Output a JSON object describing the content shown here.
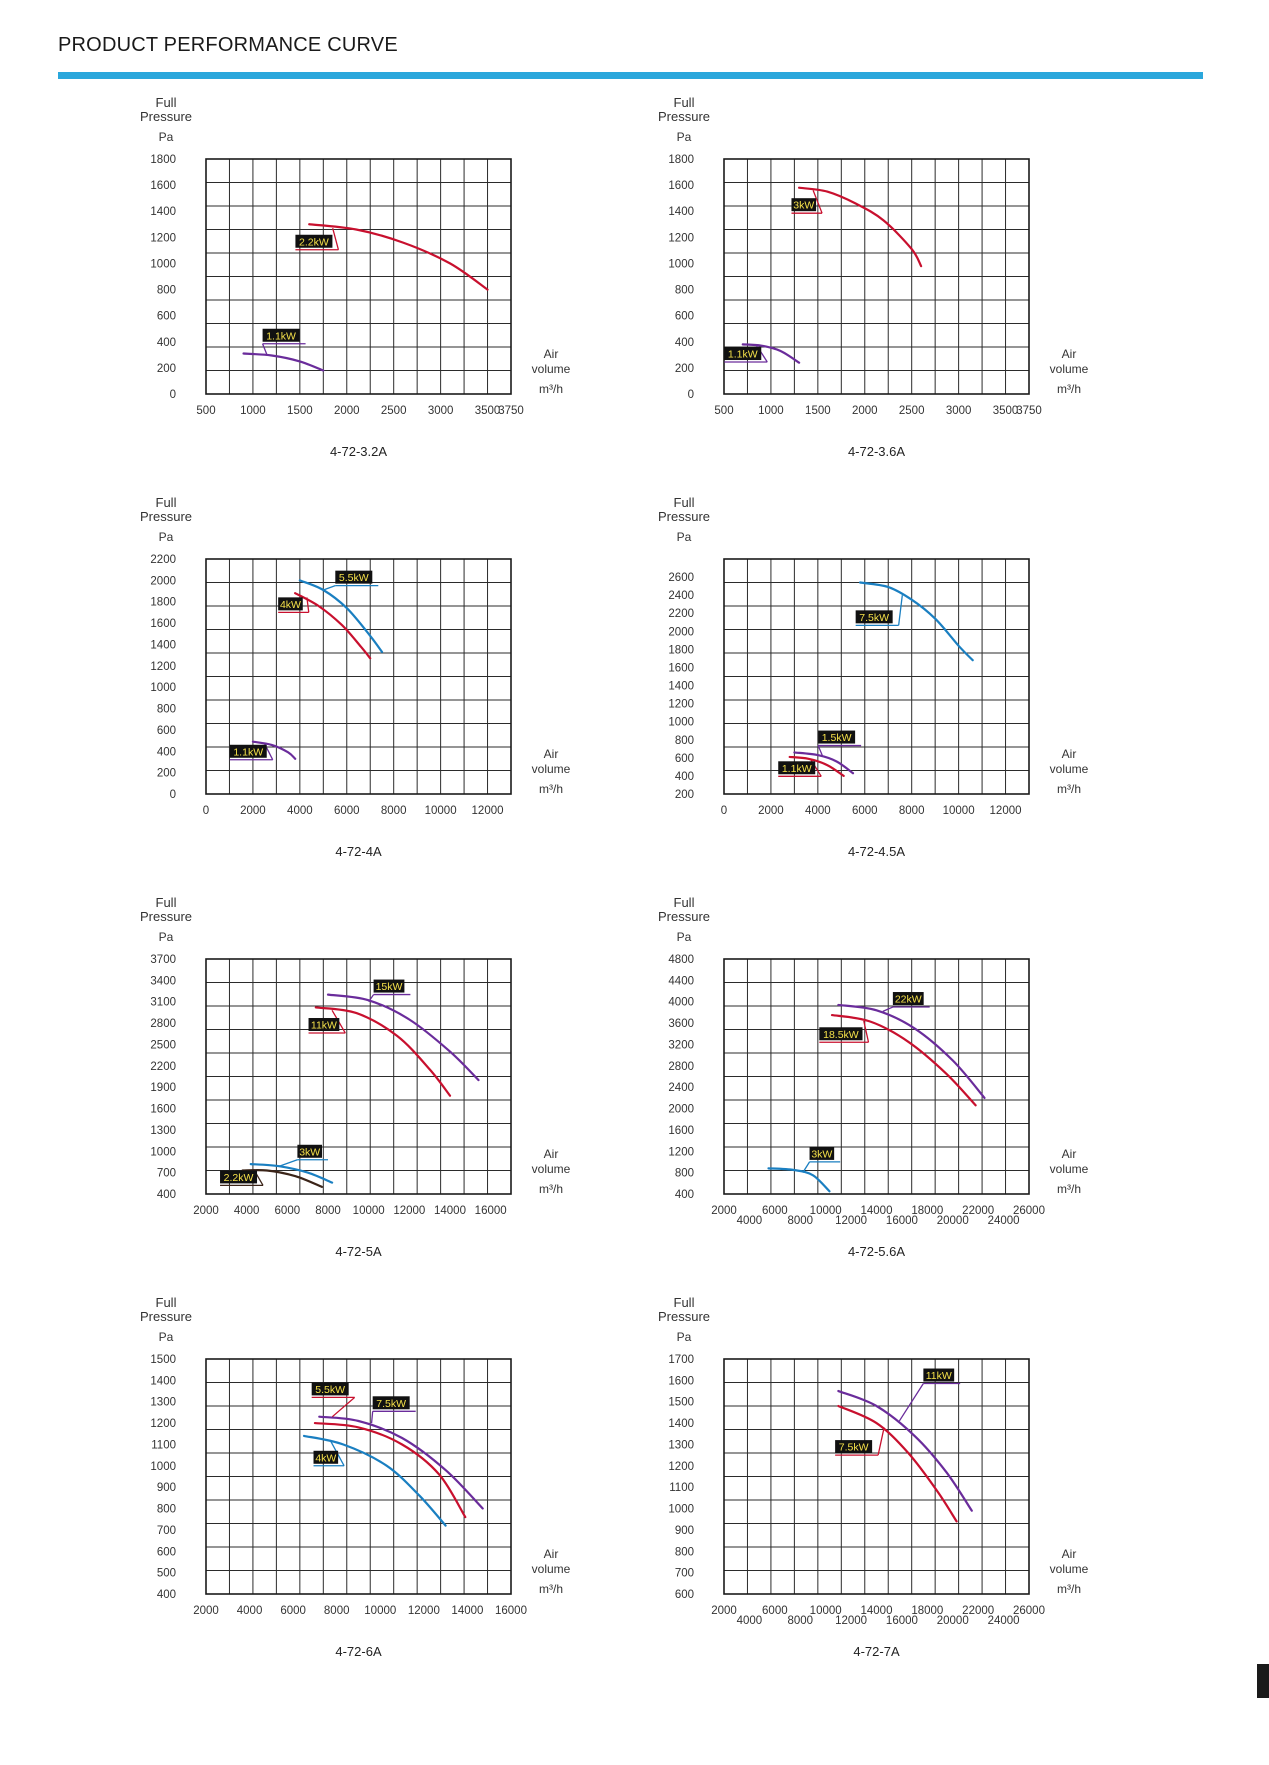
{
  "page": {
    "title": "PRODUCT PERFORMANCE CURVE"
  },
  "colors": {
    "accent": "#2aa7dc",
    "purple": "#6a2c9b",
    "red": "#c8102e",
    "blue": "#1a7fc1",
    "brown": "#3b2418",
    "badge_bg": "#111111",
    "badge_text": "#f5e14a"
  },
  "chart_data": [
    {
      "type": "line",
      "title": "4-72-3.2A",
      "ylabel": [
        "Full",
        "Pressure",
        "Pa"
      ],
      "xlabel": [
        "Air",
        "volume",
        "m³/h"
      ],
      "xlim": [
        500,
        3750
      ],
      "ylim": [
        0,
        1800
      ],
      "x_ticks": [
        500,
        1000,
        1500,
        2000,
        2500,
        3000,
        3500,
        3750
      ],
      "x_tick_labels": [
        "500",
        "1000",
        "1500",
        "2000",
        "2500",
        "3000",
        "3500",
        "3750"
      ],
      "y_ticks": [
        0,
        200,
        400,
        600,
        800,
        1000,
        1200,
        1400,
        1600,
        1800
      ],
      "series": [
        {
          "name": "2.2kW",
          "color": "#c8102e",
          "x": [
            1600,
            2100,
            2600,
            3100,
            3500
          ],
          "y": [
            1300,
            1260,
            1160,
            1000,
            800
          ],
          "label_at": [
            1850,
            1270
          ],
          "label_pos": [
            1650,
            1170
          ]
        },
        {
          "name": "1.1kW",
          "color": "#6a2c9b",
          "x": [
            900,
            1200,
            1500,
            1750
          ],
          "y": [
            310,
            295,
            250,
            180
          ],
          "label_at": [
            1150,
            300
          ],
          "label_pos": [
            1300,
            450
          ]
        }
      ]
    },
    {
      "type": "line",
      "title": "4-72-3.6A",
      "ylabel": [
        "Full",
        "Pressure",
        "Pa"
      ],
      "xlabel": [
        "Air",
        "volume",
        "m³/h"
      ],
      "xlim": [
        500,
        3750
      ],
      "ylim": [
        0,
        1800
      ],
      "x_ticks": [
        500,
        1000,
        1500,
        2000,
        2500,
        3000,
        3500,
        3750
      ],
      "x_tick_labels": [
        "500",
        "1000",
        "1500",
        "2000",
        "2500",
        "3000",
        "3500",
        "3750"
      ],
      "y_ticks": [
        0,
        200,
        400,
        600,
        800,
        1000,
        1200,
        1400,
        1600,
        1800
      ],
      "series": [
        {
          "name": "3kW",
          "color": "#c8102e",
          "x": [
            1300,
            1600,
            1900,
            2200,
            2500,
            2600
          ],
          "y": [
            1580,
            1550,
            1460,
            1330,
            1110,
            980
          ],
          "label_at": [
            1450,
            1560
          ],
          "label_pos": [
            1350,
            1450
          ]
        },
        {
          "name": "1.1kW",
          "color": "#6a2c9b",
          "x": [
            700,
            900,
            1100,
            1300
          ],
          "y": [
            380,
            370,
            330,
            240
          ],
          "label_at": [
            850,
            370
          ],
          "label_pos": [
            700,
            310
          ]
        }
      ]
    },
    {
      "type": "line",
      "title": "4-72-4A",
      "ylabel": [
        "Full",
        "Pressure",
        "Pa"
      ],
      "xlabel": [
        "Air",
        "volume",
        "m³/h"
      ],
      "xlim": [
        0,
        13000
      ],
      "ylim": [
        0,
        2200
      ],
      "x_ticks": [
        0,
        2000,
        4000,
        6000,
        8000,
        10000,
        12000
      ],
      "x_tick_labels": [
        "0",
        "2000",
        "4000",
        "6000",
        "8000",
        "10000",
        "12000"
      ],
      "y_ticks": [
        0,
        200,
        400,
        600,
        800,
        1000,
        1200,
        1400,
        1600,
        1800,
        2000,
        2200
      ],
      "series": [
        {
          "name": "5.5kW",
          "color": "#1a7fc1",
          "x": [
            4000,
            5000,
            6000,
            7000,
            7500
          ],
          "y": [
            2000,
            1910,
            1740,
            1480,
            1330
          ],
          "label_at": [
            5000,
            1910
          ],
          "label_pos": [
            6300,
            2030
          ]
        },
        {
          "name": "4kW",
          "color": "#c8102e",
          "x": [
            3800,
            4800,
            5800,
            6600,
            7000
          ],
          "y": [
            1880,
            1760,
            1580,
            1380,
            1270
          ],
          "label_at": [
            4300,
            1840
          ],
          "label_pos": [
            3600,
            1780
          ]
        },
        {
          "name": "1.1kW",
          "color": "#6a2c9b",
          "x": [
            2000,
            2800,
            3500,
            3800
          ],
          "y": [
            490,
            460,
            390,
            330
          ],
          "label_at": [
            2500,
            470
          ],
          "label_pos": [
            1800,
            400
          ]
        }
      ]
    },
    {
      "type": "line",
      "title": "4-72-4.5A",
      "ylabel": [
        "Full",
        "Pressure",
        "Pa"
      ],
      "xlabel": [
        "Air",
        "volume",
        "m³/h"
      ],
      "xlim": [
        0,
        13000
      ],
      "ylim": [
        200,
        2800
      ],
      "x_ticks": [
        0,
        2000,
        4000,
        6000,
        8000,
        10000,
        12000
      ],
      "x_tick_labels": [
        "0",
        "2000",
        "4000",
        "6000",
        "8000",
        "10000",
        "12000"
      ],
      "y_ticks": [
        200,
        400,
        600,
        800,
        1000,
        1200,
        1400,
        1600,
        1800,
        2000,
        2200,
        2400,
        2600
      ],
      "series": [
        {
          "name": "7.5kW",
          "color": "#1a7fc1",
          "x": [
            5800,
            7000,
            8000,
            9000,
            10000,
            10600
          ],
          "y": [
            2540,
            2490,
            2350,
            2140,
            1840,
            1680
          ],
          "label_at": [
            7600,
            2400
          ],
          "label_pos": [
            6400,
            2160
          ]
        },
        {
          "name": "1.5kW",
          "color": "#6a2c9b",
          "x": [
            3000,
            4000,
            4800,
            5500
          ],
          "y": [
            660,
            630,
            560,
            430
          ],
          "label_at": [
            4200,
            620
          ],
          "label_pos": [
            4800,
            830
          ]
        },
        {
          "name": "1.1kW",
          "color": "#c8102e",
          "x": [
            2800,
            3600,
            4400,
            5100
          ],
          "y": [
            610,
            590,
            520,
            400
          ],
          "label_at": [
            3700,
            580
          ],
          "label_pos": [
            3100,
            490
          ]
        }
      ]
    },
    {
      "type": "line",
      "title": "4-72-5A",
      "ylabel": [
        "Full",
        "Pressure",
        "Pa"
      ],
      "xlabel": [
        "Air",
        "volume",
        "m³/h"
      ],
      "xlim": [
        2000,
        17000
      ],
      "ylim": [
        400,
        3700
      ],
      "x_ticks": [
        2000,
        4000,
        6000,
        8000,
        10000,
        12000,
        14000,
        16000
      ],
      "x_tick_labels": [
        "2000",
        "4000",
        "6000",
        "8000",
        "10000",
        "12000",
        "14000",
        "16000"
      ],
      "y_ticks": [
        400,
        700,
        1000,
        1300,
        1600,
        1900,
        2200,
        2500,
        2800,
        3100,
        3400,
        3700
      ],
      "series": [
        {
          "name": "15kW",
          "color": "#6a2c9b",
          "x": [
            8000,
            10000,
            12000,
            14000,
            15400
          ],
          "y": [
            3200,
            3120,
            2850,
            2400,
            2000
          ],
          "label_at": [
            10000,
            3100
          ],
          "label_pos": [
            11000,
            3320
          ]
        },
        {
          "name": "11kW",
          "color": "#c8102e",
          "x": [
            7400,
            9400,
            11400,
            13000,
            14000
          ],
          "y": [
            3020,
            2940,
            2620,
            2150,
            1780
          ],
          "label_at": [
            8200,
            2980
          ],
          "label_pos": [
            7800,
            2780
          ]
        },
        {
          "name": "3kW",
          "color": "#1a7fc1",
          "x": [
            4200,
            5600,
            7000,
            8200
          ],
          "y": [
            820,
            790,
            700,
            560
          ],
          "label_at": [
            5600,
            790
          ],
          "label_pos": [
            7100,
            1000
          ]
        },
        {
          "name": "2.2kW",
          "color": "#3b2418",
          "x": [
            3800,
            5000,
            6400,
            7700
          ],
          "y": [
            730,
            730,
            650,
            500
          ],
          "label_at": [
            4400,
            720
          ],
          "label_pos": [
            3600,
            640
          ]
        }
      ]
    },
    {
      "type": "line",
      "title": "4-72-5.6A",
      "ylabel": [
        "Full",
        "Pressure",
        "Pa"
      ],
      "xlabel": [
        "Air",
        "volume",
        "m³/h"
      ],
      "xlim": [
        2000,
        26000
      ],
      "ylim": [
        400,
        4800
      ],
      "x_ticks": [
        2000,
        4000,
        6000,
        8000,
        10000,
        12000,
        14000,
        16000,
        18000,
        20000,
        22000,
        24000,
        26000
      ],
      "x_tick_labels": [
        "2000",
        "4000",
        "6000",
        "8000",
        "10000",
        "12000",
        "14000",
        "16000",
        "18000",
        "20000",
        "22000",
        "24000",
        "26000"
      ],
      "y_ticks": [
        400,
        800,
        1200,
        1600,
        2000,
        2400,
        2800,
        3200,
        3600,
        4000,
        4400,
        4800
      ],
      "series": [
        {
          "name": "22kW",
          "color": "#6a2c9b",
          "x": [
            11000,
            14000,
            17000,
            20000,
            22500
          ],
          "y": [
            3940,
            3840,
            3500,
            2900,
            2200
          ],
          "label_at": [
            14500,
            3820
          ],
          "label_pos": [
            16500,
            4060
          ]
        },
        {
          "name": "18.5kW",
          "color": "#c8102e",
          "x": [
            10500,
            13500,
            16500,
            19500,
            21800
          ],
          "y": [
            3750,
            3630,
            3250,
            2650,
            2060
          ],
          "label_at": [
            13000,
            3640
          ],
          "label_pos": [
            11200,
            3400
          ]
        },
        {
          "name": "3kW",
          "color": "#1a7fc1",
          "x": [
            5500,
            7500,
            9000,
            10300
          ],
          "y": [
            880,
            850,
            750,
            450
          ],
          "label_at": [
            8200,
            800
          ],
          "label_pos": [
            9700,
            1160
          ]
        }
      ]
    },
    {
      "type": "line",
      "title": "4-72-6A",
      "ylabel": [
        "Full",
        "Pressure",
        "Pa"
      ],
      "xlabel": [
        "Air",
        "volume",
        "m³/h"
      ],
      "xlim": [
        2000,
        16000
      ],
      "ylim": [
        400,
        1500
      ],
      "x_ticks": [
        2000,
        4000,
        6000,
        8000,
        10000,
        12000,
        14000,
        16000
      ],
      "x_tick_labels": [
        "2000",
        "4000",
        "6000",
        "8000",
        "10000",
        "12000",
        "14000",
        "16000"
      ],
      "y_ticks": [
        400,
        500,
        600,
        700,
        800,
        900,
        1000,
        1100,
        1200,
        1300,
        1400,
        1500
      ],
      "series": [
        {
          "name": "7.5kW",
          "color": "#6a2c9b",
          "x": [
            7200,
            9000,
            11000,
            13000,
            14700
          ],
          "y": [
            1230,
            1210,
            1130,
            980,
            800
          ],
          "label_at": [
            9600,
            1200
          ],
          "label_pos": [
            10500,
            1295
          ]
        },
        {
          "name": "5.5kW",
          "color": "#c8102e",
          "x": [
            7000,
            9000,
            11000,
            12700,
            13900
          ],
          "y": [
            1200,
            1180,
            1100,
            960,
            760
          ],
          "label_at": [
            7800,
            1230
          ],
          "label_pos": [
            7700,
            1360
          ]
        },
        {
          "name": "4kW",
          "color": "#1a7fc1",
          "x": [
            6500,
            8300,
            10300,
            11800,
            13000
          ],
          "y": [
            1140,
            1100,
            1000,
            860,
            720
          ],
          "label_at": [
            7700,
            1120
          ],
          "label_pos": [
            7500,
            1040
          ]
        }
      ]
    },
    {
      "type": "line",
      "title": "4-72-7A",
      "ylabel": [
        "Full",
        "Pressure",
        "Pa"
      ],
      "xlabel": [
        "Air",
        "volume",
        "m³/h"
      ],
      "xlim": [
        2000,
        26000
      ],
      "ylim": [
        600,
        1700
      ],
      "x_ticks": [
        2000,
        4000,
        6000,
        8000,
        10000,
        12000,
        14000,
        16000,
        18000,
        20000,
        22000,
        24000,
        26000
      ],
      "x_tick_labels": [
        "2000",
        "4000",
        "6000",
        "8000",
        "10000",
        "12000",
        "14000",
        "16000",
        "18000",
        "20000",
        "22000",
        "24000",
        "26000"
      ],
      "y_ticks": [
        600,
        700,
        800,
        900,
        1000,
        1100,
        1200,
        1300,
        1400,
        1500,
        1600,
        1700
      ],
      "series": [
        {
          "name": "11kW",
          "color": "#6a2c9b",
          "x": [
            11000,
            14000,
            17000,
            19500,
            21500
          ],
          "y": [
            1550,
            1480,
            1340,
            1170,
            990
          ],
          "label_at": [
            15800,
            1410
          ],
          "label_pos": [
            18900,
            1625
          ]
        },
        {
          "name": "7.5kW",
          "color": "#c8102e",
          "x": [
            11000,
            14000,
            16500,
            18800,
            20300
          ],
          "y": [
            1480,
            1400,
            1260,
            1080,
            940
          ],
          "label_at": [
            14600,
            1380
          ],
          "label_pos": [
            12200,
            1290
          ]
        }
      ]
    }
  ]
}
